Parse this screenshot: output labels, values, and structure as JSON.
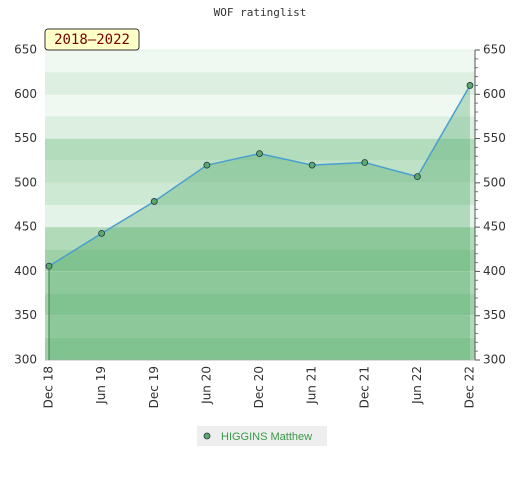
{
  "chart_data": {
    "type": "area",
    "title": "WOF ratinglist",
    "annotation": "2018–2022",
    "categories": [
      "Dec 18",
      "Jun 19",
      "Dec 19",
      "Jun 20",
      "Dec 20",
      "Jun 21",
      "Dec 21",
      "Jun 22",
      "Dec 22"
    ],
    "series": [
      {
        "name": "HIGGINS Matthew",
        "color": "#4a9fd0",
        "values": [
          406,
          443,
          479,
          520,
          533,
          520,
          523,
          507,
          610
        ]
      }
    ],
    "ylim": [
      300,
      650
    ],
    "yticks": [
      300,
      350,
      400,
      450,
      500,
      550,
      600,
      650
    ],
    "y2lim": [
      300,
      650
    ],
    "y2ticks": [
      300,
      350,
      400,
      450,
      500,
      550,
      600,
      650
    ],
    "grid": true
  }
}
